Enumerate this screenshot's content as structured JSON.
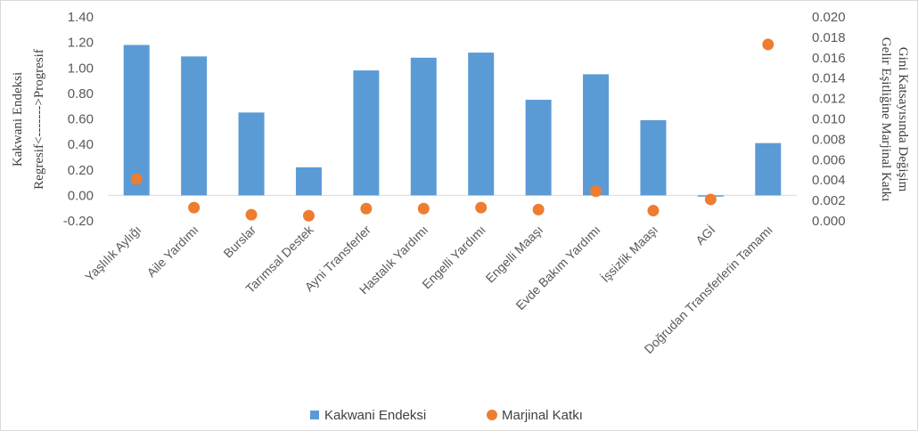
{
  "chart_data": {
    "type": "bar",
    "categories": [
      "Yaşlılık Aylığı",
      "Aile Yardımı",
      "Burslar",
      "Tarımsal Destek",
      "Ayni Transferler",
      "Hastalık Yardımı",
      "Engelli Yardımı",
      "Engelli Maaşı",
      "Evde Bakım Yardımı",
      "İşsizlik Maaşı",
      "AGİ",
      "Doğrudan Transferlerin Tamamı"
    ],
    "series": [
      {
        "name": "Kakwani Endeksi",
        "type": "bar",
        "axis": "left",
        "color": "#5b9bd5",
        "values": [
          1.18,
          1.09,
          0.65,
          0.22,
          0.98,
          1.08,
          1.12,
          0.75,
          0.95,
          0.59,
          -0.01,
          0.41
        ]
      },
      {
        "name": "Marjinal Katkı",
        "type": "scatter",
        "axis": "right",
        "color": "#ed7d31",
        "values": [
          0.0041,
          0.0013,
          0.0006,
          0.0005,
          0.0012,
          0.0012,
          0.0013,
          0.0011,
          0.0029,
          0.001,
          0.0021,
          0.0173
        ]
      }
    ],
    "y_left": {
      "title_line1": "Kakwani Endeksi",
      "title_line2": "Regresif<------->Progresif",
      "ylim": [
        -0.2,
        1.4
      ],
      "ticks": [
        "1.40",
        "1.20",
        "1.00",
        "0.80",
        "0.60",
        "0.40",
        "0.20",
        "0.00",
        "-0.20"
      ]
    },
    "y_right": {
      "title_line1": "Gelir Eşitliğine Marjinal Katkı",
      "title_line2": "Gini Katsayısında Değişim",
      "ylim": [
        0,
        0.02
      ],
      "ticks": [
        "0.020",
        "0.018",
        "0.016",
        "0.014",
        "0.012",
        "0.010",
        "0.008",
        "0.006",
        "0.004",
        "0.002",
        "0.000"
      ]
    },
    "legend": {
      "position": "bottom",
      "items": [
        "Kakwani Endeksi",
        "Marjinal Katkı"
      ]
    },
    "grid": false
  }
}
